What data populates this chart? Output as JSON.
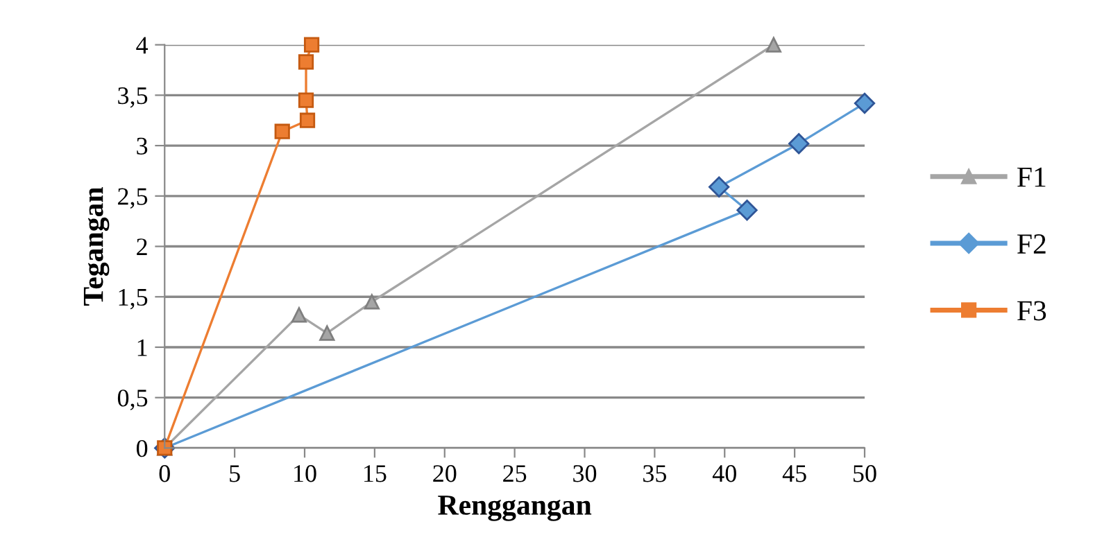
{
  "chart_data": {
    "type": "line",
    "xlabel": "Renggangan",
    "ylabel": "Tegangan",
    "xlim": [
      0,
      50
    ],
    "ylim": [
      0,
      4
    ],
    "xticks": [
      0,
      5,
      10,
      15,
      20,
      25,
      30,
      35,
      40,
      45,
      50
    ],
    "yticks": [
      0,
      {
        "value": 0.5,
        "label": "0,5"
      },
      1,
      {
        "value": 1.5,
        "label": "1,5"
      },
      2,
      {
        "value": 2.5,
        "label": "2,5"
      },
      3,
      {
        "value": 3.5,
        "label": "3,5"
      },
      4
    ],
    "grid": "y",
    "legend": "right",
    "series": [
      {
        "name": "F1",
        "color": "#a5a5a5",
        "marker": "triangle",
        "x": [
          0,
          9.6,
          11.6,
          14.8,
          43.5
        ],
        "values": [
          0,
          1.32,
          1.14,
          1.45,
          4
        ]
      },
      {
        "name": "F2",
        "color": "#5b9bd5",
        "marker": "diamond",
        "x": [
          0,
          41.6,
          39.6,
          45.3,
          50
        ],
        "values": [
          0,
          2.36,
          2.59,
          3.02,
          3.42
        ]
      },
      {
        "name": "F3",
        "color": "#ed7d31",
        "marker": "square",
        "x": [
          0,
          8.4,
          10.2,
          10.1,
          10.1,
          10.5
        ],
        "values": [
          0,
          3.14,
          3.25,
          3.45,
          3.83,
          4
        ]
      }
    ]
  }
}
